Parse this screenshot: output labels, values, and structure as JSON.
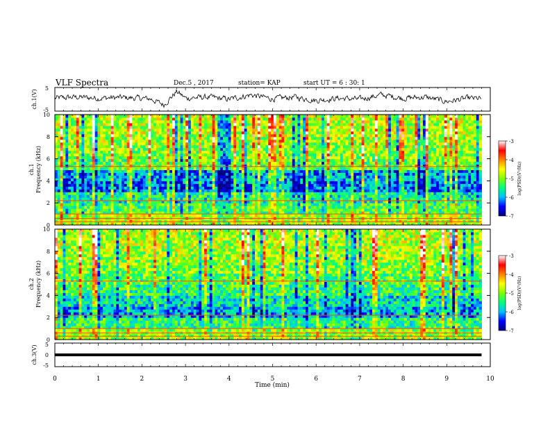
{
  "header": {
    "title": "VLF Spectra",
    "date": "Dec.5 , 2017",
    "station": "station= KAP",
    "start": "start UT = 6 : 30: 1"
  },
  "colorbar": {
    "label": "log(PSD)(V²/Hz)",
    "ticks": [
      "-3",
      "-4",
      "-5",
      "-6",
      "-7"
    ],
    "stops": [
      "#000080",
      "#0000ff",
      "#00c0ff",
      "#00ff80",
      "#80ff00",
      "#ffff00",
      "#ff8000",
      "#ff0000",
      "#ffffff"
    ]
  },
  "chart_data": [
    {
      "type": "line",
      "panel": "ch1",
      "ylabel": "ch.1(V)",
      "ylim": [
        -5,
        5
      ],
      "yticks": [
        "5",
        "-5"
      ],
      "xlim": [
        0,
        10
      ],
      "x": [
        0,
        0.5,
        1.0,
        1.5,
        2.0,
        2.2,
        2.5,
        2.8,
        3.0,
        3.5,
        4.0,
        4.5,
        5.0,
        5.5,
        6.0,
        6.5,
        7.0,
        7.5,
        8.0,
        8.5,
        9.0,
        9.5,
        9.8
      ],
      "values": [
        0.5,
        1.0,
        0.5,
        0.8,
        0.4,
        0.2,
        -2.5,
        3.5,
        0.5,
        1.0,
        0.0,
        2.0,
        0.2,
        1.0,
        -0.5,
        0.5,
        0.0,
        2.0,
        0.5,
        1.0,
        -1.0,
        0.5,
        0.2
      ]
    },
    {
      "type": "heatmap",
      "panel": "ch1-spectrogram",
      "ylabel": "ch.1",
      "ylabel2": "Frequency (kHz)",
      "yticks": [
        "0",
        "2",
        "4",
        "6",
        "8",
        "10"
      ],
      "ylim": [
        0,
        10
      ],
      "xlim": [
        0,
        10
      ],
      "zlim": [
        -7,
        -3
      ],
      "freq_khz": [
        0.5,
        1.5,
        2.5,
        3.5,
        4.5,
        5.5,
        6.5,
        7.5,
        8.5,
        9.5
      ],
      "mean_log_psd": [
        -4.8,
        -5.3,
        -5.6,
        -6.2,
        -6.0,
        -5.2,
        -5.0,
        -4.9,
        -4.8,
        -4.8
      ]
    },
    {
      "type": "heatmap",
      "panel": "ch2-spectrogram",
      "ylabel": "ch.2",
      "ylabel2": "Frequency (kHz)",
      "yticks": [
        "0",
        "2",
        "4",
        "6",
        "8",
        "10"
      ],
      "ylim": [
        0,
        10
      ],
      "xlim": [
        0,
        10
      ],
      "zlim": [
        -7,
        -3
      ],
      "freq_khz": [
        0.5,
        1.5,
        2.5,
        3.5,
        4.5,
        5.5,
        6.5,
        7.5,
        8.5,
        9.5
      ],
      "mean_log_psd": [
        -4.9,
        -5.4,
        -6.0,
        -5.7,
        -5.4,
        -5.2,
        -5.0,
        -4.9,
        -4.8,
        -4.8
      ]
    },
    {
      "type": "line",
      "panel": "ch3",
      "ylabel": "ch.3(V)",
      "ylim": [
        -5,
        5
      ],
      "yticks": [
        "5",
        "0",
        "-5"
      ],
      "xlim": [
        0,
        10
      ],
      "x": [
        0,
        9.8
      ],
      "values": [
        0,
        0
      ]
    }
  ],
  "xaxis": {
    "label": "Time (min)",
    "ticks": [
      "0",
      "1",
      "2",
      "3",
      "4",
      "5",
      "6",
      "7",
      "8",
      "9",
      "10"
    ]
  }
}
